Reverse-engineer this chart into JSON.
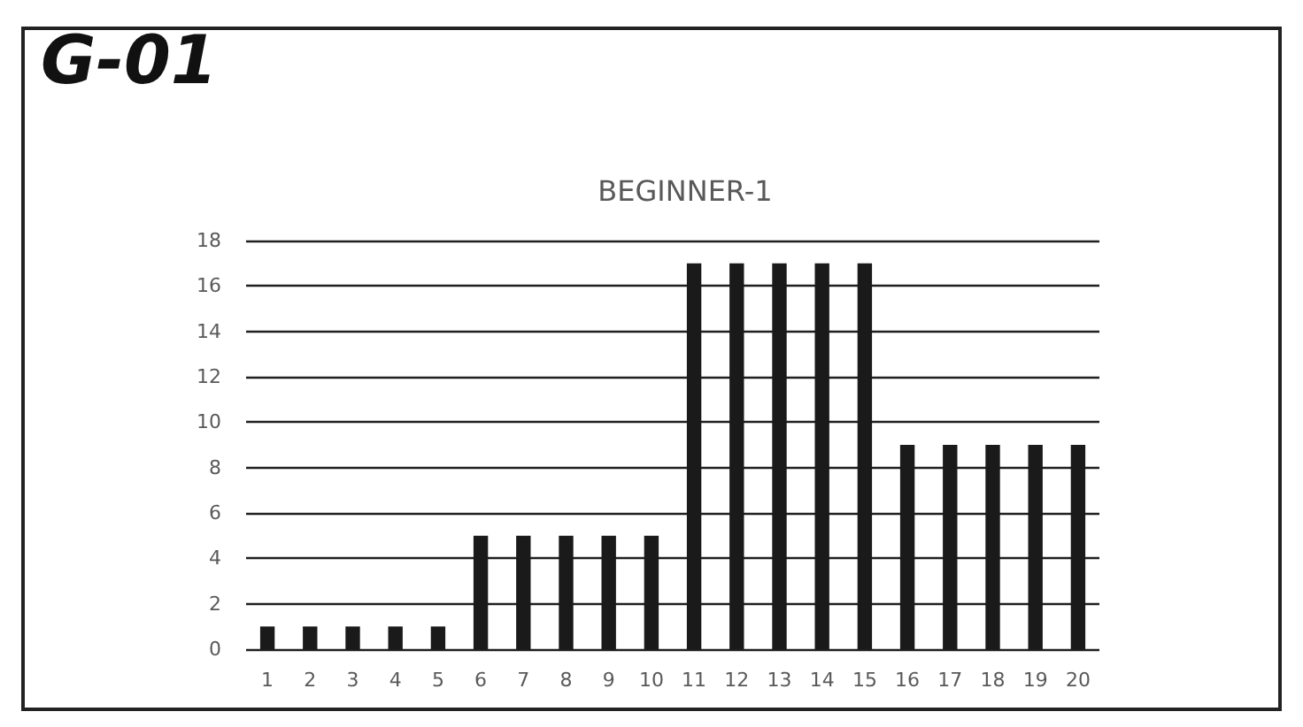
{
  "chart_data": {
    "type": "bar",
    "title": "G-01",
    "subtitle": "BEGINNER-1",
    "categories": [
      "1",
      "2",
      "3",
      "4",
      "5",
      "6",
      "7",
      "8",
      "9",
      "10",
      "11",
      "12",
      "13",
      "14",
      "15",
      "16",
      "17",
      "18",
      "19",
      "20"
    ],
    "values": [
      1,
      1,
      1,
      1,
      1,
      5,
      5,
      5,
      5,
      5,
      17,
      17,
      17,
      17,
      17,
      9,
      9,
      9,
      9,
      9
    ],
    "color": "#1a1a1a",
    "ylim": [
      0,
      18
    ],
    "yticks": [
      0,
      2,
      4,
      6,
      8,
      10,
      12,
      14,
      16,
      18
    ],
    "grid": "y"
  }
}
